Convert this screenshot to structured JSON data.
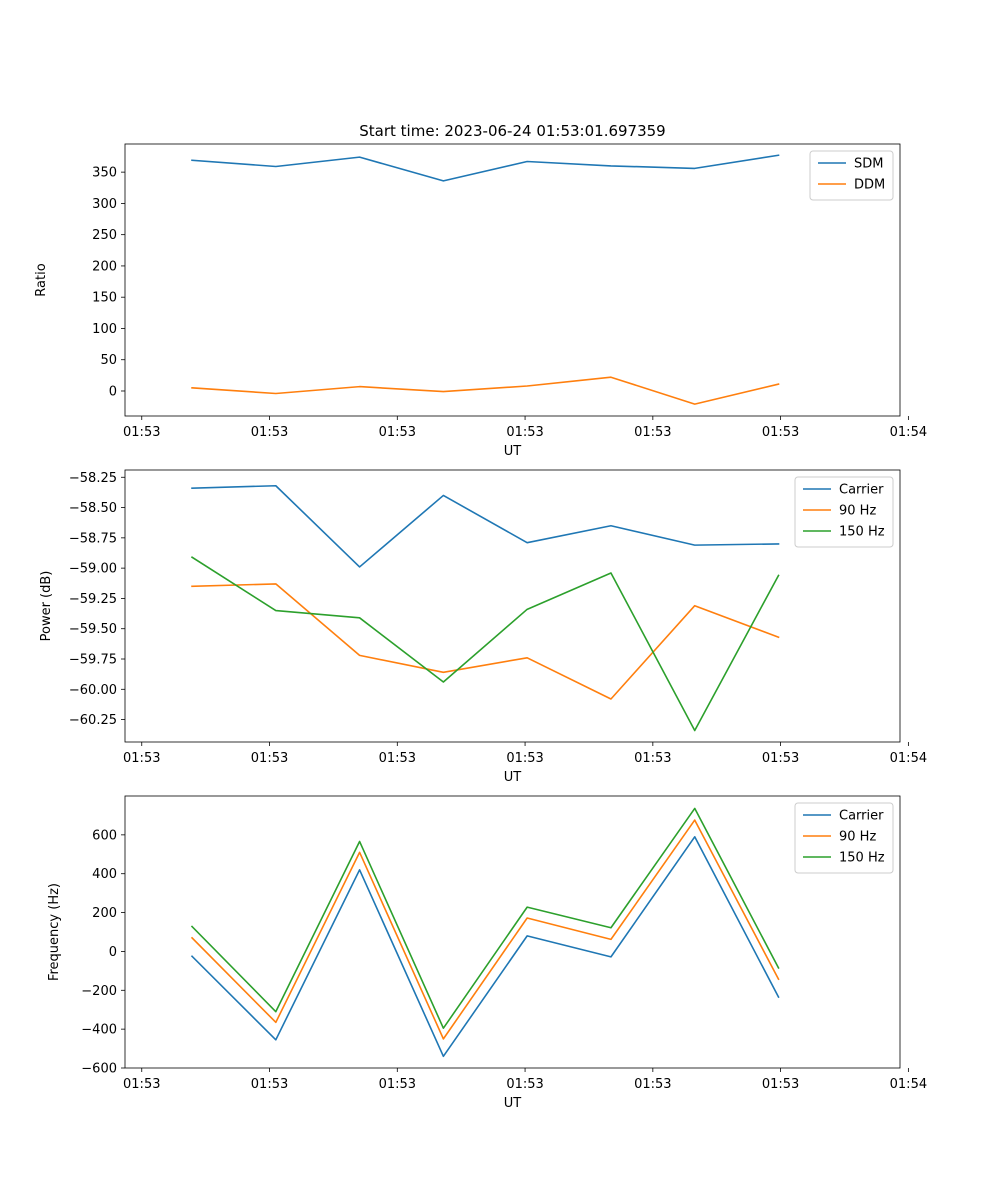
{
  "figure": {
    "title": "Start time: 2023-06-24 01:53:01.697359"
  },
  "colors": {
    "blue": "#1f77b4",
    "orange": "#ff7f0e",
    "green": "#2ca02c"
  },
  "chart_data": [
    {
      "type": "line",
      "title": "Start time: 2023-06-24 01:53:01.697359",
      "xlabel": "UT",
      "ylabel": "Ratio",
      "x": [
        1,
        2,
        3,
        4,
        5,
        6,
        7,
        8
      ],
      "xlim": [
        0.2,
        9.45
      ],
      "xticks": [
        0.4,
        1.925,
        3.45,
        4.975,
        6.5,
        8.025,
        9.55
      ],
      "xtick_labels": [
        "01:53",
        "01:53",
        "01:53",
        "01:53",
        "01:53",
        "01:53",
        "01:54"
      ],
      "ylim": [
        -40,
        395
      ],
      "yticks": [
        0,
        50,
        100,
        150,
        200,
        250,
        300,
        350
      ],
      "ytick_labels": [
        "0",
        "50",
        "100",
        "150",
        "200",
        "250",
        "300",
        "350"
      ],
      "legend_position": "top-right",
      "series": [
        {
          "name": "SDM",
          "color": "#1f77b4",
          "values": [
            369,
            359,
            374,
            336,
            367,
            360,
            356,
            377
          ]
        },
        {
          "name": "DDM",
          "color": "#ff7f0e",
          "values": [
            5,
            -4,
            7,
            -1,
            8,
            22,
            -21,
            11
          ]
        }
      ]
    },
    {
      "type": "line",
      "xlabel": "UT",
      "ylabel": "Power (dB)",
      "x": [
        1,
        2,
        3,
        4,
        5,
        6,
        7,
        8
      ],
      "xlim": [
        0.2,
        9.45
      ],
      "xticks": [
        0.4,
        1.925,
        3.45,
        4.975,
        6.5,
        8.025,
        9.55
      ],
      "xtick_labels": [
        "01:53",
        "01:53",
        "01:53",
        "01:53",
        "01:53",
        "01:53",
        "01:54"
      ],
      "ylim": [
        -60.435,
        -58.19
      ],
      "yticks": [
        -58.25,
        -58.5,
        -58.75,
        -59.0,
        -59.25,
        -59.5,
        -59.75,
        -60.0,
        -60.25
      ],
      "ytick_labels": [
        "−58.25",
        "−58.50",
        "−58.75",
        "−59.00",
        "−59.25",
        "−59.50",
        "−59.75",
        "−60.00",
        "−60.25"
      ],
      "legend_position": "top-right",
      "series": [
        {
          "name": "Carrier",
          "color": "#1f77b4",
          "values": [
            -58.34,
            -58.32,
            -58.99,
            -58.4,
            -58.79,
            -58.65,
            -58.81,
            -58.8
          ]
        },
        {
          "name": "90 Hz",
          "color": "#ff7f0e",
          "values": [
            -59.15,
            -59.13,
            -59.72,
            -59.86,
            -59.74,
            -60.08,
            -59.31,
            -59.57
          ]
        },
        {
          "name": "150 Hz",
          "color": "#2ca02c",
          "values": [
            -58.91,
            -59.35,
            -59.41,
            -59.94,
            -59.34,
            -59.04,
            -60.34,
            -59.06
          ]
        }
      ]
    },
    {
      "type": "line",
      "xlabel": "UT",
      "ylabel": "Frequency (Hz)",
      "x": [
        1,
        2,
        3,
        4,
        5,
        6,
        7,
        8
      ],
      "xlim": [
        0.2,
        9.45
      ],
      "xticks": [
        0.4,
        1.925,
        3.45,
        4.975,
        6.5,
        8.025,
        9.55
      ],
      "xtick_labels": [
        "01:53",
        "01:53",
        "01:53",
        "01:53",
        "01:53",
        "01:53",
        "01:54"
      ],
      "ylim": [
        -600,
        800
      ],
      "yticks": [
        -600,
        -400,
        -200,
        0,
        200,
        400,
        600
      ],
      "ytick_labels": [
        "−600",
        "−400",
        "−200",
        "0",
        "200",
        "400",
        "600"
      ],
      "legend_position": "top-right",
      "series": [
        {
          "name": "Carrier",
          "color": "#1f77b4",
          "values": [
            -25,
            -455,
            420,
            -540,
            80,
            -28,
            590,
            -235
          ]
        },
        {
          "name": "90 Hz",
          "color": "#ff7f0e",
          "values": [
            70,
            -365,
            510,
            -450,
            172,
            62,
            676,
            -143
          ]
        },
        {
          "name": "150 Hz",
          "color": "#2ca02c",
          "values": [
            128,
            -310,
            566,
            -395,
            228,
            122,
            736,
            -85
          ]
        }
      ]
    }
  ]
}
